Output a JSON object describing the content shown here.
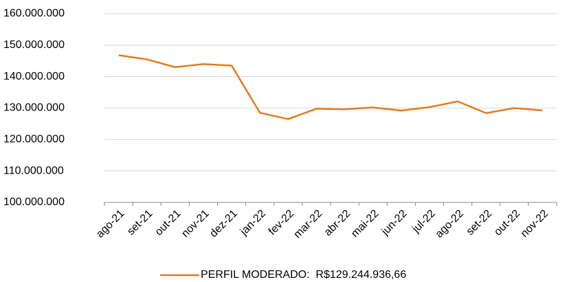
{
  "chart_data": {
    "type": "line",
    "categories": [
      "ago-21",
      "set-21",
      "out-21",
      "nov-21",
      "dez-21",
      "jan-22",
      "fev-22",
      "mar-22",
      "abr-22",
      "mai-22",
      "jun-22",
      "jul-22",
      "ago-22",
      "set-22",
      "out-22",
      "nov-22"
    ],
    "series": [
      {
        "name": "PERFIL MODERADO:  R$129.244.936,66",
        "color": "#e47a1e",
        "values": [
          146800000,
          145500000,
          143000000,
          144000000,
          143500000,
          128500000,
          126500000,
          129800000,
          129600000,
          130200000,
          129200000,
          130300000,
          132100000,
          128400000,
          130000000,
          129244936.66
        ]
      }
    ],
    "ylim": [
      100000000,
      160000000
    ],
    "yticks": [
      {
        "value": 100000000,
        "label": "100.000.000"
      },
      {
        "value": 110000000,
        "label": "110.000.000"
      },
      {
        "value": 120000000,
        "label": "120.000.000"
      },
      {
        "value": 130000000,
        "label": "130.000.000"
      },
      {
        "value": 140000000,
        "label": "140.000.000"
      },
      {
        "value": 150000000,
        "label": "150.000.000"
      },
      {
        "value": 160000000,
        "label": "160.000.000"
      }
    ],
    "grid": true,
    "legend": "bottom"
  }
}
